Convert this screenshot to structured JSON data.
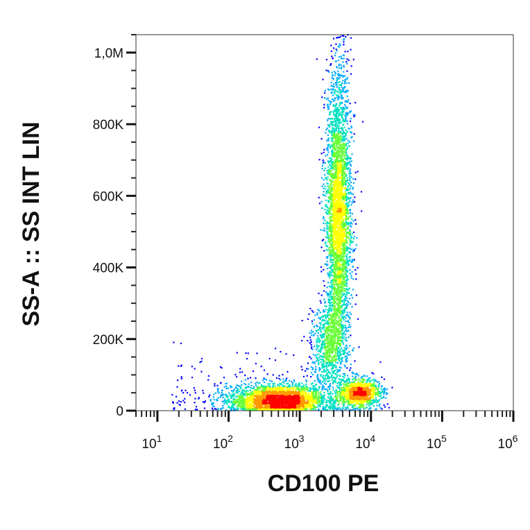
{
  "chart_data": {
    "type": "scatter",
    "subtype": "flow-cytometry density dot plot",
    "xlabel": "CD100 PE",
    "ylabel": "SS-A :: SS INT LIN",
    "x_scale": "log",
    "y_scale": "linear",
    "xlim": [
      5,
      1000000
    ],
    "ylim": [
      0,
      1050000
    ],
    "x_ticks": [
      {
        "value": 10,
        "base": "10",
        "exp": "1"
      },
      {
        "value": 100,
        "base": "10",
        "exp": "2"
      },
      {
        "value": 1000,
        "base": "10",
        "exp": "3"
      },
      {
        "value": 10000,
        "base": "10",
        "exp": "4"
      },
      {
        "value": 100000,
        "base": "10",
        "exp": "5"
      },
      {
        "value": 1000000,
        "base": "10",
        "exp": "6"
      }
    ],
    "y_ticks": [
      {
        "value": 0,
        "label": "0"
      },
      {
        "value": 200000,
        "label": "200K"
      },
      {
        "value": 400000,
        "label": "400K"
      },
      {
        "value": 600000,
        "label": "600K"
      },
      {
        "value": 800000,
        "label": "800K"
      },
      {
        "value": 1000000,
        "label": "1,0M"
      }
    ],
    "populations": [
      {
        "x_center": 500,
        "y_center": 30000,
        "x_spread_decades": 0.35,
        "y_spread": 22000,
        "count": 2600
      },
      {
        "x_center": 7000,
        "y_center": 50000,
        "x_spread_decades": 0.15,
        "y_spread": 20000,
        "count": 1000
      },
      {
        "x_center": 3500,
        "y_center": 540000,
        "x_spread_decades": 0.09,
        "y_spread": 210000,
        "count": 3600
      },
      {
        "x_center": 2500,
        "y_center": 180000,
        "x_spread_decades": 0.12,
        "y_spread": 60000,
        "count": 700
      }
    ],
    "grid": false,
    "density_colors": [
      "#0000ff",
      "#00aaff",
      "#00e0c0",
      "#66ff33",
      "#ffff00",
      "#ff9900",
      "#ff0000"
    ]
  }
}
